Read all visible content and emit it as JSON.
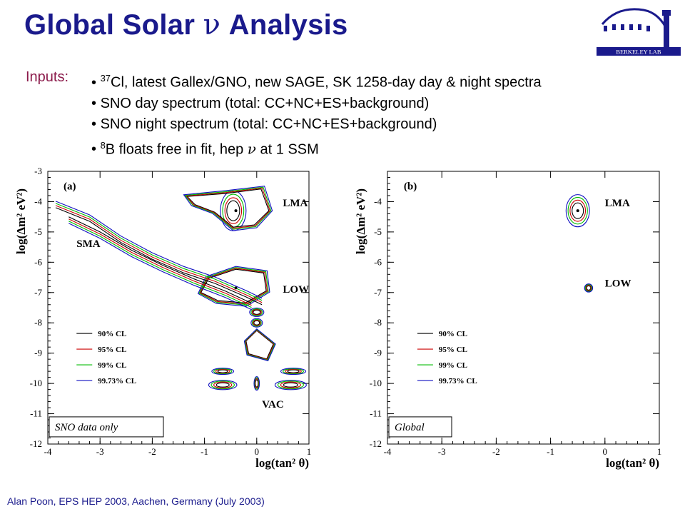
{
  "slide": {
    "title_prefix": "Global Solar ",
    "title_nu": "ν",
    "title_suffix": " Analysis",
    "inputs_label": "Inputs:",
    "inputs": [
      {
        "sup": "37",
        "text": "Cl, latest Gallex/GNO, new SAGE, SK 1258-day day & night spectra"
      },
      {
        "text": "SNO day spectrum (total: CC+NC+ES+background)"
      },
      {
        "text": "SNO night spectrum (total: CC+NC+ES+background)"
      },
      {
        "sup": "8",
        "pre": "B floats free in fit, hep ",
        "nu": "ν",
        "post": " at 1 SSM"
      }
    ],
    "footer": "Alan Poon, EPS HEP 2003, Aachen, Germany (July 2003)",
    "logo_text": "BERKELEY LAB"
  },
  "chart_data": [
    {
      "type": "contour",
      "panel_label": "(a)",
      "annotation": "SNO data only",
      "xlabel": "log(tan² θ)",
      "ylabel": "log(Δm² eV²)",
      "xlim": [
        -4,
        1
      ],
      "ylim": [
        -12,
        -3
      ],
      "xticks": [
        -4,
        -3,
        -2,
        -1,
        0,
        1
      ],
      "yticks": [
        -3,
        -4,
        -5,
        -6,
        -7,
        -8,
        -9,
        -10,
        -11,
        -12
      ],
      "region_labels": [
        {
          "text": "LMA",
          "x": 0.5,
          "y": -4.15
        },
        {
          "text": "SMA",
          "x": -3.45,
          "y": -5.5
        },
        {
          "text": "LOW",
          "x": 0.5,
          "y": -7.0
        },
        {
          "text": "VAC",
          "x": 0.1,
          "y": -10.8
        }
      ],
      "best_fit_points": [
        {
          "x": -0.4,
          "y": -4.3
        },
        {
          "x": -0.4,
          "y": -6.85
        }
      ],
      "legend": [
        "90% CL",
        "95% CL",
        "99% CL",
        "99.73% CL"
      ],
      "colors": [
        "#000000",
        "#cc0000",
        "#00bb00",
        "#1010c0"
      ]
    },
    {
      "type": "contour",
      "panel_label": "(b)",
      "annotation": "Global",
      "xlabel": "log(tan² θ)",
      "ylabel": "log(Δm² eV²)",
      "xlim": [
        -4,
        1
      ],
      "ylim": [
        -12,
        -3
      ],
      "xticks": [
        -4,
        -3,
        -2,
        -1,
        0,
        1
      ],
      "yticks": [
        -4,
        -5,
        -6,
        -7,
        -8,
        -9,
        -10,
        -11,
        -12
      ],
      "region_labels": [
        {
          "text": "LMA",
          "x": 0.0,
          "y": -4.15
        },
        {
          "text": "LOW",
          "x": 0.0,
          "y": -6.8
        }
      ],
      "best_fit_points": [
        {
          "x": -0.5,
          "y": -4.3
        }
      ],
      "legend": [
        "90% CL",
        "95% CL",
        "99% CL",
        "99.73% CL"
      ],
      "colors": [
        "#000000",
        "#cc0000",
        "#00bb00",
        "#1010c0"
      ]
    }
  ]
}
